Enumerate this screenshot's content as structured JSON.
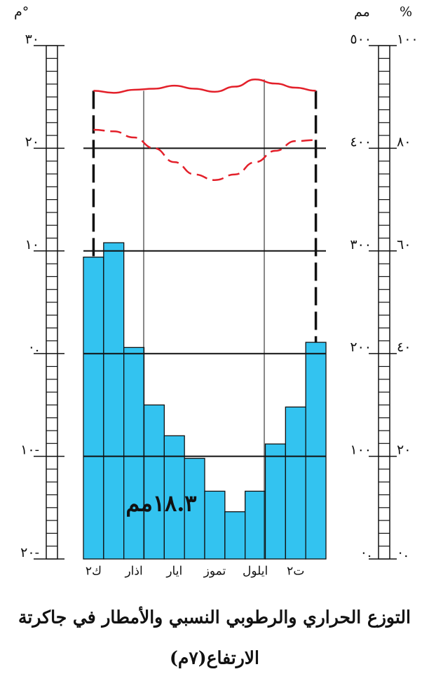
{
  "chart_data": {
    "type": "climograph",
    "title": "التوزع الحراري والرطوبي النسبي والأمطار في جاكرتة",
    "subtitle": "الارتفاع(٧م)",
    "y_unit": "م°",
    "y2_unit": "مم",
    "y3_unit": "%",
    "annotation": "١٨.٣مم",
    "categories": [
      "ك٢",
      null,
      "اذار",
      null,
      "ايار",
      null,
      "تموز",
      null,
      "ايلول",
      null,
      "ت٢",
      null
    ],
    "ylim": [
      -20,
      30
    ],
    "yticks": [
      {
        "value": 30,
        "label": "٣٠"
      },
      {
        "value": 20,
        "label": "٢٠"
      },
      {
        "value": 10,
        "label": "١٠"
      },
      {
        "value": 0,
        "label": "٠."
      },
      {
        "value": -10,
        "label": "١٠-"
      },
      {
        "value": -20,
        "label": "٢٠-"
      }
    ],
    "y2lim": [
      0,
      500
    ],
    "y2ticks": [
      {
        "value": 500,
        "label": "٥٠٠"
      },
      {
        "value": 400,
        "label": "٤٠٠"
      },
      {
        "value": 300,
        "label": "٣٠٠"
      },
      {
        "value": 200,
        "label": "٢٠٠"
      },
      {
        "value": 100,
        "label": "١٠٠"
      },
      {
        "value": 0,
        "label": "٠."
      }
    ],
    "y3lim": [
      0,
      100
    ],
    "y3ticks": [
      {
        "value": 100,
        "label": "١٠٠"
      },
      {
        "value": 80,
        "label": "٨٠"
      },
      {
        "value": 60,
        "label": "٦٠"
      },
      {
        "value": 40,
        "label": "٤٠"
      },
      {
        "value": 20,
        "label": "٢٠"
      },
      {
        "value": 0,
        "label": "٠."
      }
    ],
    "grid": true,
    "series": [
      {
        "kind": "bar",
        "axis": "y2",
        "color": "#33c3f0",
        "values": [
          294,
          308,
          206,
          150,
          120,
          98,
          66,
          46,
          66,
          112,
          148,
          211
        ]
      },
      {
        "kind": "line",
        "axis": "y",
        "color": "#e3202a",
        "values": [
          25.6,
          25.4,
          25.7,
          25.8,
          26.1,
          25.8,
          25.5,
          26.0,
          26.7,
          26.3,
          25.9,
          25.6
        ]
      },
      {
        "kind": "dashed",
        "axis": "y3",
        "color": "#e3202a",
        "values": [
          83.6,
          83.3,
          82.1,
          80.0,
          77.3,
          74.9,
          73.8,
          74.9,
          77.3,
          79.5,
          81.4,
          81.6
        ]
      }
    ]
  }
}
